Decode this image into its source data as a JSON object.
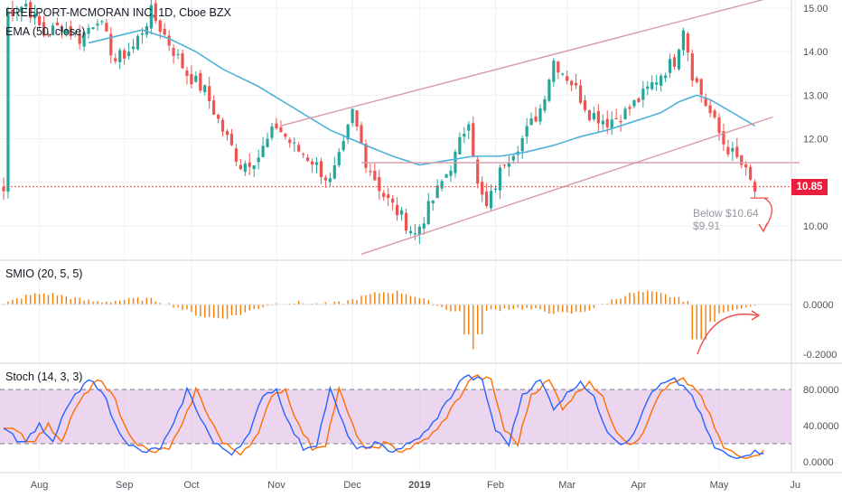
{
  "header": {
    "title": "FREEPORT-MCMORAN INC, 1D, Cboe BZX",
    "ema_label": "EMA (50, close)",
    "smio_label": "SMIO (20, 5, 5)",
    "stoch_label": "Stoch (14, 3, 3)"
  },
  "last_price": "10.85",
  "annotations": {
    "below_text": "Below $10.64",
    "target_text": "$9.91"
  },
  "colors": {
    "up": "#26a69a",
    "down": "#ef5350",
    "ema": "#4fb3d9",
    "channel": "#d79aa8",
    "smio": "#f57c00",
    "stoch_k": "#2962ff",
    "stoch_d": "#ff6d00",
    "stoch_band": "#e1bee7",
    "price_tag": "#e91e3c"
  },
  "chart_data": [
    {
      "type": "candlestick",
      "title": "FREEPORT-MCMORAN INC, 1D, Cboe BZX",
      "y_ticks": [
        "15.00",
        "14.00",
        "13.00",
        "12.00",
        "11.00",
        "10.00"
      ],
      "ylim": [
        9.3,
        15.2
      ],
      "x_ticks": [
        "Aug",
        "Sep",
        "Oct",
        "Nov",
        "Dec",
        "2019",
        "Feb",
        "Mar",
        "Apr",
        "May",
        "Ju"
      ],
      "close_path": [
        [
          1,
          14.9
        ],
        [
          5,
          15.1
        ],
        [
          9,
          14.4
        ],
        [
          13,
          14.6
        ],
        [
          17,
          14.3
        ],
        [
          21,
          14.8
        ],
        [
          25,
          13.8
        ],
        [
          29,
          14.1
        ],
        [
          33,
          14.9
        ],
        [
          37,
          14.2
        ],
        [
          41,
          13.5
        ],
        [
          45,
          13.1
        ],
        [
          49,
          12.2
        ],
        [
          53,
          11.4
        ],
        [
          57,
          11.6
        ],
        [
          61,
          12.3
        ],
        [
          65,
          11.8
        ],
        [
          69,
          11.5
        ],
        [
          73,
          11.0
        ],
        [
          76,
          11.8
        ],
        [
          78,
          12.6
        ],
        [
          81,
          11.5
        ],
        [
          85,
          10.7
        ],
        [
          89,
          10.2
        ],
        [
          92,
          9.8
        ],
        [
          95,
          10.4
        ],
        [
          98,
          11.0
        ],
        [
          101,
          11.6
        ],
        [
          104,
          12.5
        ],
        [
          106,
          10.9
        ],
        [
          108,
          10.4
        ],
        [
          112,
          11.5
        ],
        [
          116,
          12.0
        ],
        [
          120,
          12.7
        ],
        [
          123,
          13.8
        ],
        [
          127,
          13.3
        ],
        [
          131,
          12.6
        ],
        [
          135,
          12.4
        ],
        [
          139,
          12.6
        ],
        [
          143,
          13.0
        ],
        [
          147,
          13.5
        ],
        [
          150,
          13.8
        ],
        [
          152,
          14.6
        ],
        [
          154,
          13.5
        ],
        [
          157,
          12.8
        ],
        [
          161,
          11.9
        ],
        [
          165,
          11.4
        ],
        [
          167,
          11.0
        ],
        [
          168,
          10.8
        ]
      ],
      "ema_series": {
        "name": "EMA (50, close)",
        "points": [
          [
            19,
            14.2
          ],
          [
            25,
            14.35
          ],
          [
            31,
            14.5
          ],
          [
            37,
            14.3
          ],
          [
            43,
            14.0
          ],
          [
            49,
            13.6
          ],
          [
            57,
            13.2
          ],
          [
            65,
            12.7
          ],
          [
            73,
            12.2
          ],
          [
            81,
            11.85
          ],
          [
            87,
            11.6
          ],
          [
            93,
            11.4
          ],
          [
            99,
            11.5
          ],
          [
            105,
            11.6
          ],
          [
            111,
            11.6
          ],
          [
            117,
            11.7
          ],
          [
            123,
            11.85
          ],
          [
            129,
            12.05
          ],
          [
            135,
            12.2
          ],
          [
            141,
            12.4
          ],
          [
            147,
            12.6
          ],
          [
            151,
            12.85
          ],
          [
            155,
            13.0
          ],
          [
            158,
            12.9
          ],
          [
            163,
            12.6
          ],
          [
            168,
            12.3
          ]
        ]
      },
      "lines": [
        {
          "name": "upper-channel",
          "from": [
            62,
            12.3
          ],
          "to": [
            170,
            15.2
          ]
        },
        {
          "name": "lower-channel",
          "from": [
            80,
            9.35
          ],
          "to": [
            172,
            12.5
          ]
        },
        {
          "name": "resistance",
          "from": [
            80,
            11.45
          ],
          "to": [
            178,
            11.45
          ]
        },
        {
          "name": "last-price-line",
          "from": [
            0,
            10.9
          ],
          "to": [
            178,
            10.9
          ]
        },
        {
          "name": "support-tick",
          "from": [
            167,
            10.64
          ],
          "to": [
            171,
            10.64
          ]
        }
      ]
    },
    {
      "type": "bar",
      "title": "SMIO (20, 5, 5)",
      "y_ticks": [
        "0.0000",
        "-0.2000"
      ],
      "ylim": [
        -0.25,
        0.13
      ],
      "series": [
        {
          "name": "SMIO (20, 5, 5)"
        }
      ]
    },
    {
      "type": "line",
      "title": "Stoch (14, 3, 3)",
      "y_ticks": [
        "80.0000",
        "40.0000",
        "0.0000"
      ],
      "ylim": [
        -5,
        100
      ],
      "levels": [
        80,
        20
      ],
      "series": [
        {
          "name": "%K"
        },
        {
          "name": "%D"
        }
      ],
      "k_path": [
        [
          0,
          40
        ],
        [
          4,
          20
        ],
        [
          8,
          40
        ],
        [
          11,
          20
        ],
        [
          14,
          60
        ],
        [
          19,
          90
        ],
        [
          22,
          80
        ],
        [
          25,
          40
        ],
        [
          28,
          20
        ],
        [
          31,
          10
        ],
        [
          35,
          15
        ],
        [
          38,
          40
        ],
        [
          41,
          80
        ],
        [
          44,
          50
        ],
        [
          47,
          20
        ],
        [
          51,
          10
        ],
        [
          55,
          30
        ],
        [
          58,
          75
        ],
        [
          61,
          80
        ],
        [
          64,
          40
        ],
        [
          67,
          15
        ],
        [
          70,
          20
        ],
        [
          73,
          80
        ],
        [
          76,
          40
        ],
        [
          79,
          12
        ],
        [
          83,
          20
        ],
        [
          87,
          12
        ],
        [
          91,
          20
        ],
        [
          95,
          35
        ],
        [
          99,
          65
        ],
        [
          103,
          95
        ],
        [
          107,
          90
        ],
        [
          110,
          35
        ],
        [
          113,
          20
        ],
        [
          116,
          75
        ],
        [
          120,
          90
        ],
        [
          123,
          60
        ],
        [
          126,
          75
        ],
        [
          129,
          90
        ],
        [
          132,
          70
        ],
        [
          135,
          35
        ],
        [
          138,
          20
        ],
        [
          141,
          30
        ],
        [
          144,
          70
        ],
        [
          147,
          85
        ],
        [
          150,
          90
        ],
        [
          153,
          80
        ],
        [
          156,
          50
        ],
        [
          159,
          15
        ],
        [
          163,
          5
        ],
        [
          167,
          10
        ],
        [
          171,
          12
        ]
      ]
    }
  ]
}
